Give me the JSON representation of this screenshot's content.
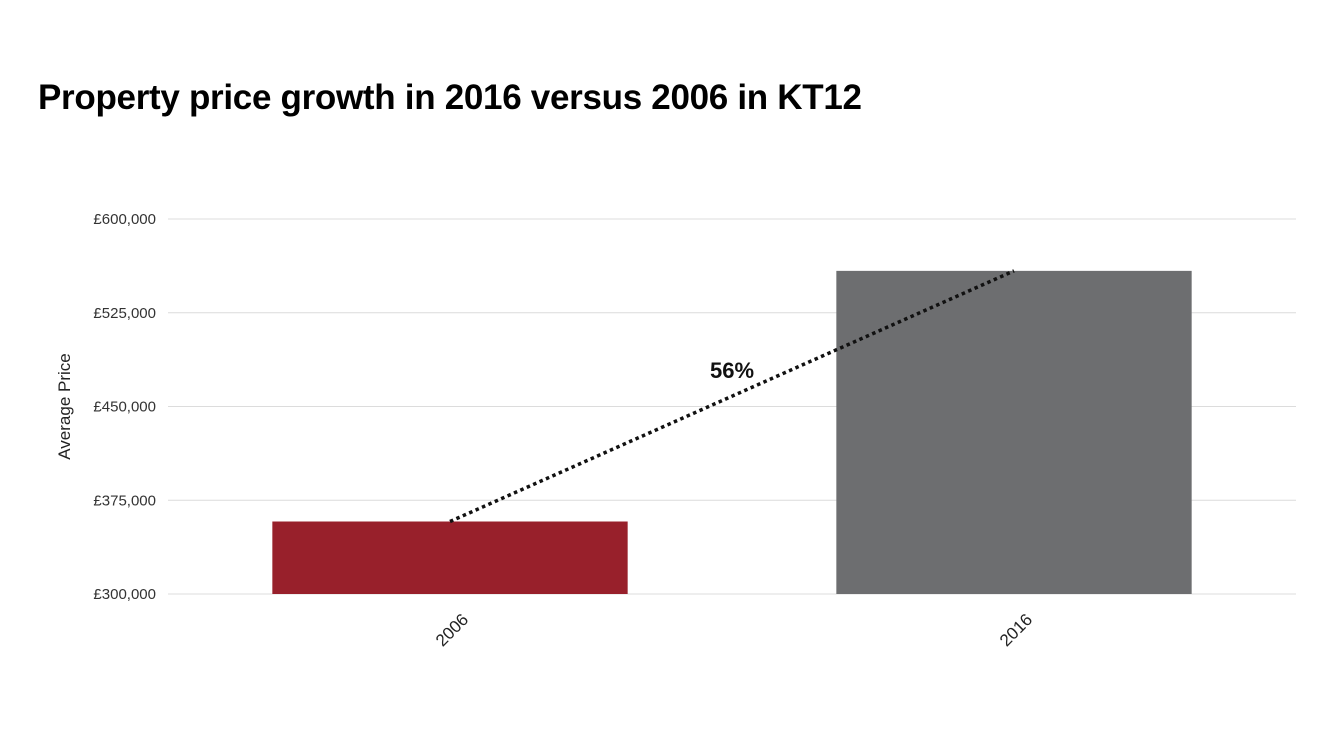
{
  "chart_data": {
    "type": "bar",
    "title": "Property price growth in 2016 versus 2006 in KT12",
    "ylabel": "Average Price",
    "xlabel": "",
    "categories": [
      "2006",
      "2016"
    ],
    "values": [
      358000,
      558500
    ],
    "ylim": [
      300000,
      600000
    ],
    "yticks": [
      300000,
      375000,
      450000,
      525000,
      600000
    ],
    "ytick_labels": [
      "£300,000",
      "£375,000",
      "£450,000",
      "£525,000",
      "£600,000"
    ],
    "bar_colors": [
      "#98202b",
      "#6d6e70"
    ],
    "grid": true,
    "legend": "none",
    "annotation": {
      "text": "56%",
      "from": "2006",
      "to": "2016",
      "style": "dotted"
    }
  }
}
